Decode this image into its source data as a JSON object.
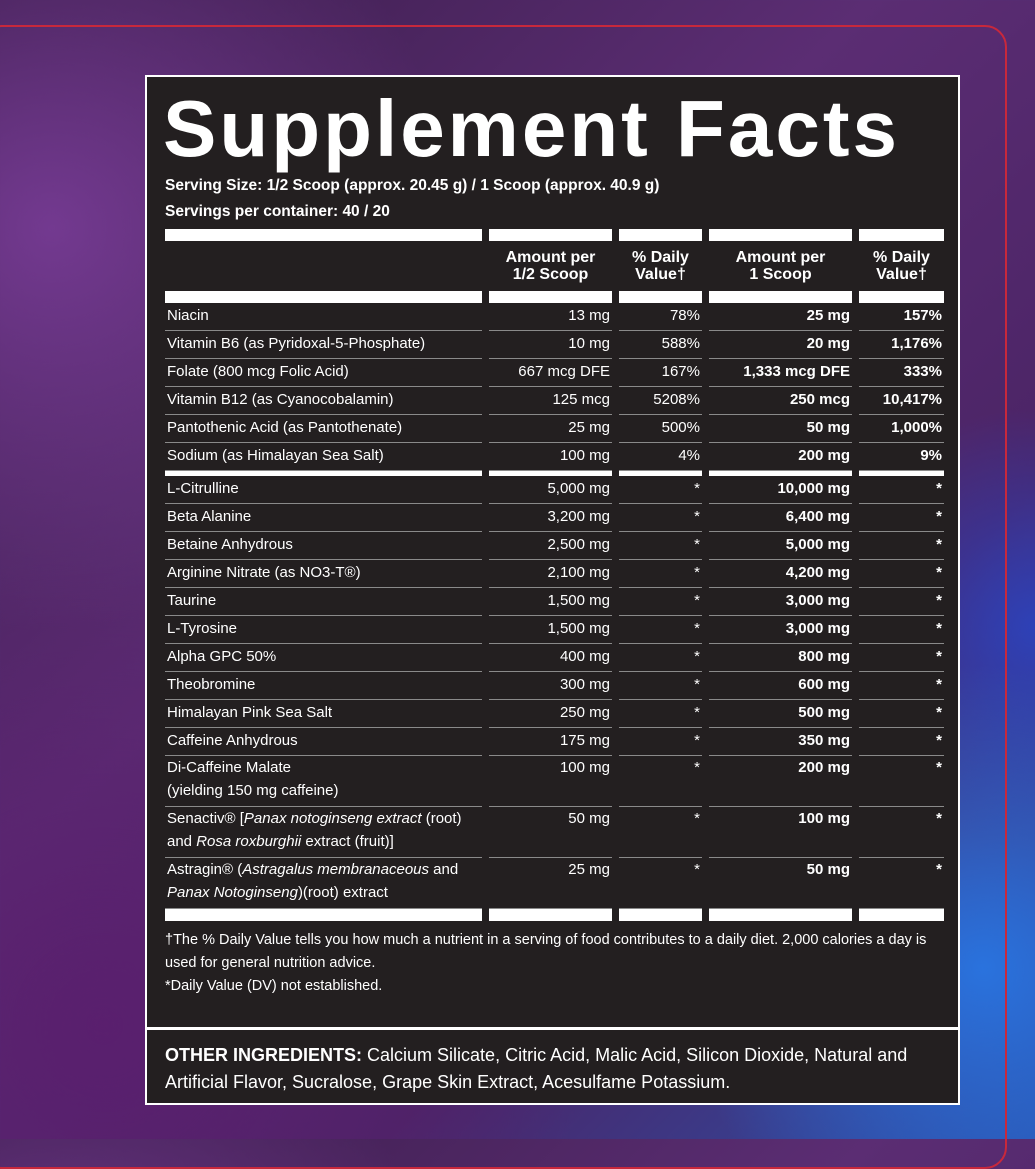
{
  "header": {
    "title": "Supplement Facts",
    "serving_size": "Serving Size: 1/2 Scoop (approx. 20.45 g) / 1 Scoop (approx. 40.9 g)",
    "servings": "Servings per container: 40 / 20"
  },
  "table": {
    "columns": [
      [
        "Amount per",
        "1/2 Scoop"
      ],
      [
        "% Daily",
        "Value†"
      ],
      [
        "Amount per",
        "1 Scoop"
      ],
      [
        "% Daily",
        "Value†"
      ]
    ],
    "groups": [
      {
        "rows": [
          {
            "name": "Niacin",
            "amounts": [
              "13 mg",
              "78%",
              "25 mg",
              "157%"
            ]
          },
          {
            "name": "Vitamin B6 (as Pyridoxal-5-Phosphate)",
            "amounts": [
              "10 mg",
              "588%",
              "20 mg",
              "1,176%"
            ]
          },
          {
            "name": "Folate (800 mcg Folic Acid)",
            "amounts": [
              "667 mcg DFE",
              "167%",
              "1,333 mcg DFE",
              "333%"
            ]
          },
          {
            "name": "Vitamin B12 (as Cyanocobalamin)",
            "amounts": [
              "125 mcg",
              "5208%",
              "250 mcg",
              "10,417%"
            ]
          },
          {
            "name": "Pantothenic Acid (as Pantothenate)",
            "amounts": [
              "25 mg",
              "500%",
              "50 mg",
              "1,000%"
            ]
          },
          {
            "name": "Sodium (as Himalayan Sea Salt)",
            "amounts": [
              "100 mg",
              "4%",
              "200 mg",
              "9%"
            ]
          }
        ]
      },
      {
        "rows": [
          {
            "name": "L-Citrulline",
            "amounts": [
              "5,000 mg",
              "*",
              "10,000 mg",
              "*"
            ]
          },
          {
            "name": "Beta Alanine",
            "amounts": [
              "3,200 mg",
              "*",
              "6,400 mg",
              "*"
            ]
          },
          {
            "name": "Betaine Anhydrous",
            "amounts": [
              "2,500 mg",
              "*",
              "5,000 mg",
              "*"
            ]
          },
          {
            "name": "Arginine Nitrate (as NO3-T®)",
            "amounts": [
              "2,100 mg",
              "*",
              "4,200 mg",
              "*"
            ]
          },
          {
            "name": "Taurine",
            "amounts": [
              "1,500 mg",
              "*",
              "3,000 mg",
              "*"
            ]
          },
          {
            "name": "L-Tyrosine",
            "amounts": [
              "1,500 mg",
              "*",
              "3,000 mg",
              "*"
            ]
          },
          {
            "name": "Alpha GPC 50%",
            "amounts": [
              "400 mg",
              "*",
              "800 mg",
              "*"
            ]
          },
          {
            "name": "Theobromine",
            "amounts": [
              "300 mg",
              "*",
              "600 mg",
              "*"
            ]
          },
          {
            "name": "Himalayan Pink Sea Salt",
            "amounts": [
              "250 mg",
              "*",
              "500 mg",
              "*"
            ]
          },
          {
            "name": "Caffeine Anhydrous",
            "amounts": [
              "175 mg",
              "*",
              "350 mg",
              "*"
            ]
          },
          {
            "name": [
              [
                "Di-Caffeine Malate"
              ],
              [
                "(yielding 150 mg caffeine)"
              ]
            ],
            "amounts": [
              "100 mg",
              "*",
              "200 mg",
              "*"
            ]
          },
          {
            "name": [
              [
                "Senactiv® [",
                {
                  "text": "Panax notoginseng extract",
                  "italic": true
                },
                " (root)"
              ],
              [
                "and ",
                {
                  "text": "Rosa roxburghii",
                  "italic": true
                },
                " extract (fruit)]"
              ]
            ],
            "amounts": [
              "50 mg",
              "*",
              "100 mg",
              "*"
            ]
          },
          {
            "name": [
              [
                "Astragin® (",
                {
                  "text": "Astragalus membranaceous",
                  "italic": true
                },
                " and"
              ],
              [
                {
                  "text": "Panax Notoginseng",
                  "italic": true
                },
                ")(root) extract"
              ]
            ],
            "amounts": [
              "25 mg",
              "*",
              "50 mg",
              "*"
            ]
          }
        ]
      }
    ]
  },
  "footnotes": [
    "†The % Daily Value tells you how much a nutrient in a serving of food contributes to a daily diet. 2,000 calories a day is used for general nutrition advice.",
    "*Daily Value (DV) not established."
  ],
  "other_ingredients": {
    "label": "OTHER INGREDIENTS:",
    "text": "Calcium Silicate, Citric Acid, Malic Acid, Silicon Dioxide, Natural and Artificial Flavor, Sucralose, Grape Skin Extract, Acesulfame Potassium."
  }
}
